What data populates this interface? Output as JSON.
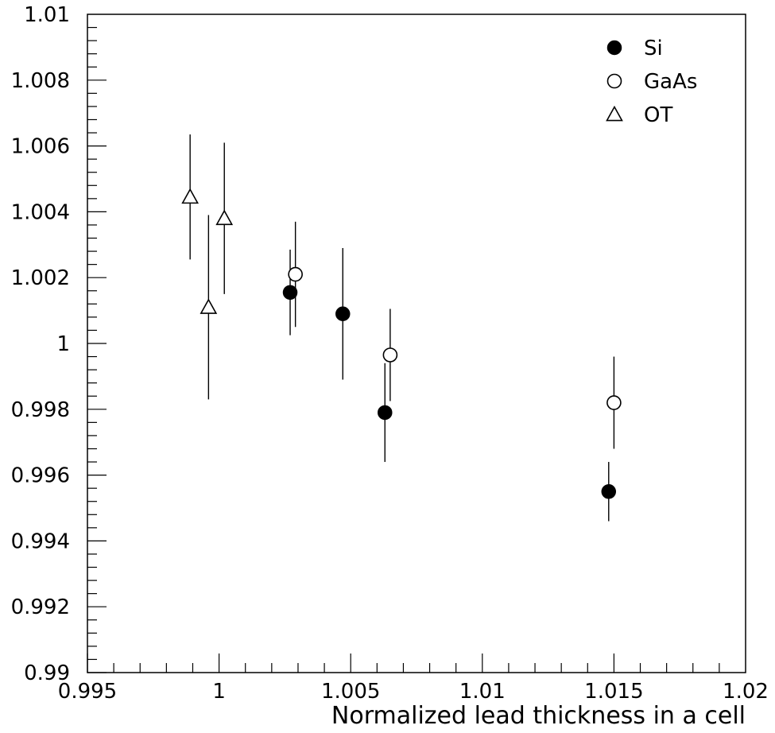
{
  "chart_data": {
    "type": "scatter",
    "title": "",
    "xlabel": "Normalized lead thickness in a cell",
    "ylabel": "",
    "xlim": [
      0.995,
      1.02
    ],
    "ylim": [
      0.99,
      1.01
    ],
    "x_ticks": [
      "0.995",
      "1",
      "1.005",
      "1.01",
      "1.015",
      "1.02"
    ],
    "y_ticks": [
      "0.99",
      "0.992",
      "0.994",
      "0.996",
      "0.998",
      "1",
      "1.002",
      "1.004",
      "1.006",
      "1.008",
      "1.01"
    ],
    "grid": false,
    "legend_position": "top-right",
    "series": [
      {
        "name": "Si",
        "marker": "filled-circle",
        "points": [
          {
            "x": 1.0027,
            "y": 1.00155,
            "err": 0.0013
          },
          {
            "x": 1.0047,
            "y": 1.0009,
            "err": 0.002
          },
          {
            "x": 1.0063,
            "y": 0.9979,
            "err": 0.0015
          },
          {
            "x": 1.0148,
            "y": 0.9955,
            "err": 0.0009
          }
        ]
      },
      {
        "name": "GaAs",
        "marker": "open-circle",
        "points": [
          {
            "x": 1.0029,
            "y": 1.0021,
            "err": 0.0016
          },
          {
            "x": 1.0065,
            "y": 0.99965,
            "err": 0.0014
          },
          {
            "x": 1.015,
            "y": 0.9982,
            "err": 0.0014
          }
        ]
      },
      {
        "name": "OT",
        "marker": "open-triangle",
        "points": [
          {
            "x": 0.9989,
            "y": 1.00445,
            "err": 0.0019
          },
          {
            "x": 0.9996,
            "y": 1.0011,
            "err": 0.0028
          },
          {
            "x": 1.0002,
            "y": 1.0038,
            "err": 0.0023
          }
        ]
      }
    ]
  }
}
